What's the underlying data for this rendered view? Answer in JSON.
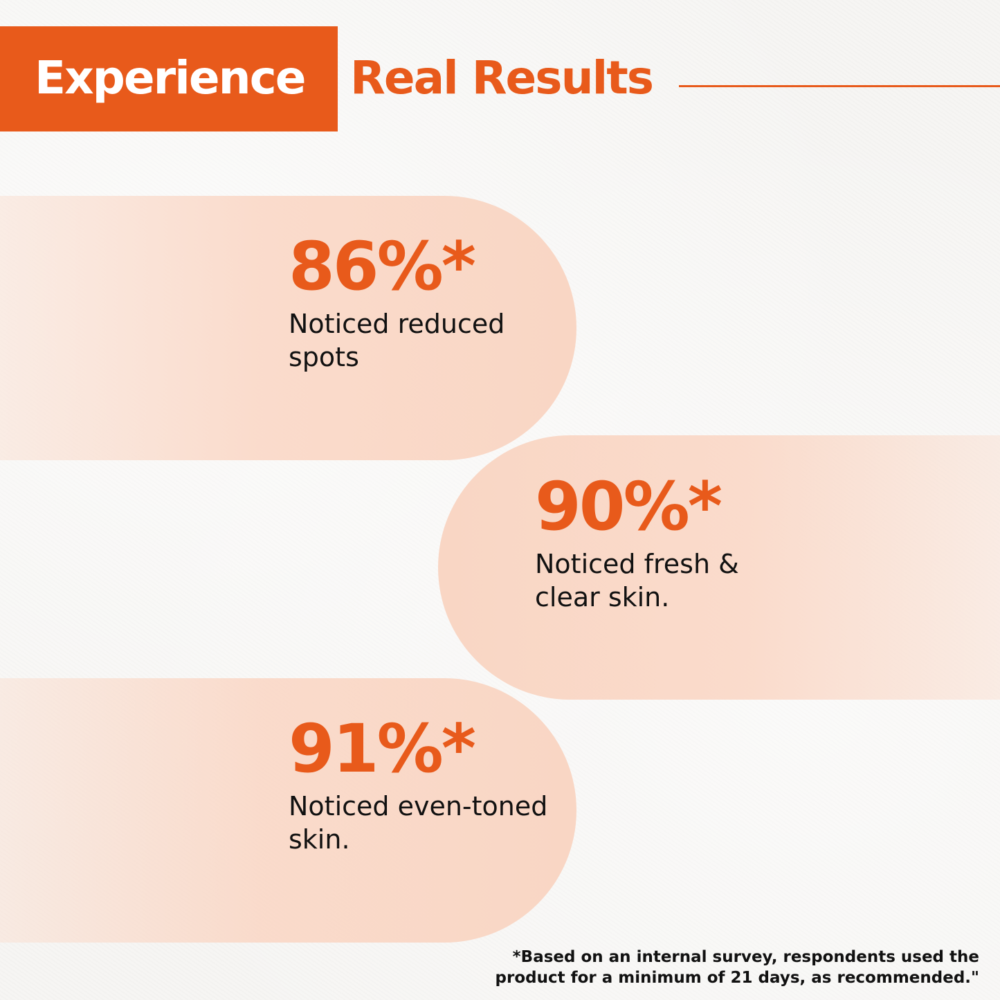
{
  "header": {
    "highlight": "Experience",
    "title_rest": "Real Results"
  },
  "colors": {
    "accent": "#e85a1b",
    "pill": "#f9d6c4",
    "text": "#111111",
    "background": "#f6f5f3"
  },
  "stats": [
    {
      "value": "86%*",
      "label": "Noticed reduced spots"
    },
    {
      "value": "90%*",
      "label": "Noticed fresh & clear skin."
    },
    {
      "value": "91%*",
      "label": "Noticed even-toned skin."
    }
  ],
  "footnote": "*Based on an internal survey, respondents used the product for a minimum of 21 days, as recommended.\""
}
